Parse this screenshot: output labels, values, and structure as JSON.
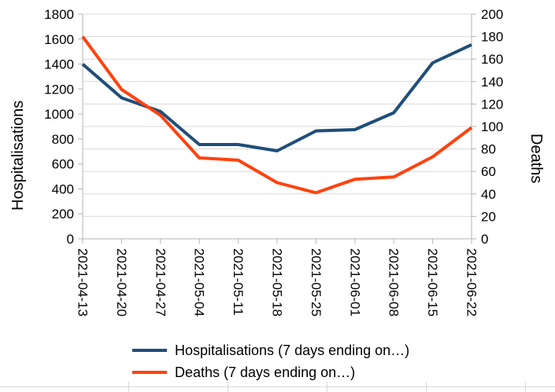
{
  "chart_data": {
    "type": "line",
    "title": "",
    "categories": [
      "2021-04-13",
      "2021-04-20",
      "2021-04-27",
      "2021-05-04",
      "2021-05-11",
      "2021-05-18",
      "2021-05-25",
      "2021-06-01",
      "2021-06-08",
      "2021-06-15",
      "2021-06-22"
    ],
    "series": [
      {
        "name": "Hospitalisations (7 days ending on…)",
        "axis": "left",
        "color": "#1f4e79",
        "values": [
          1400,
          1130,
          1020,
          755,
          755,
          705,
          865,
          875,
          1010,
          1410,
          1555
        ]
      },
      {
        "name": "Deaths (7 days ending on…)",
        "axis": "right",
        "color": "#ff420e",
        "values": [
          180,
          133,
          110,
          72,
          70,
          50,
          41,
          53,
          55,
          73,
          99
        ]
      }
    ],
    "left_axis": {
      "title": "Hospitalisations",
      "min": 0,
      "max": 1800,
      "step": 200,
      "ticks": [
        0,
        200,
        400,
        600,
        800,
        1000,
        1200,
        1400,
        1600,
        1800
      ]
    },
    "right_axis": {
      "title": "Deaths",
      "min": 0,
      "max": 200,
      "step": 20,
      "ticks": [
        0,
        20,
        40,
        60,
        80,
        100,
        120,
        140,
        160,
        180,
        200
      ]
    },
    "grid": "horizontal (follows right axis steps)",
    "legend_position": "bottom"
  },
  "colors": {
    "axis_line": "#b3b3b3",
    "gridline": "#d9d9d9",
    "tick_label": "#000000",
    "background": "#ffffff"
  }
}
